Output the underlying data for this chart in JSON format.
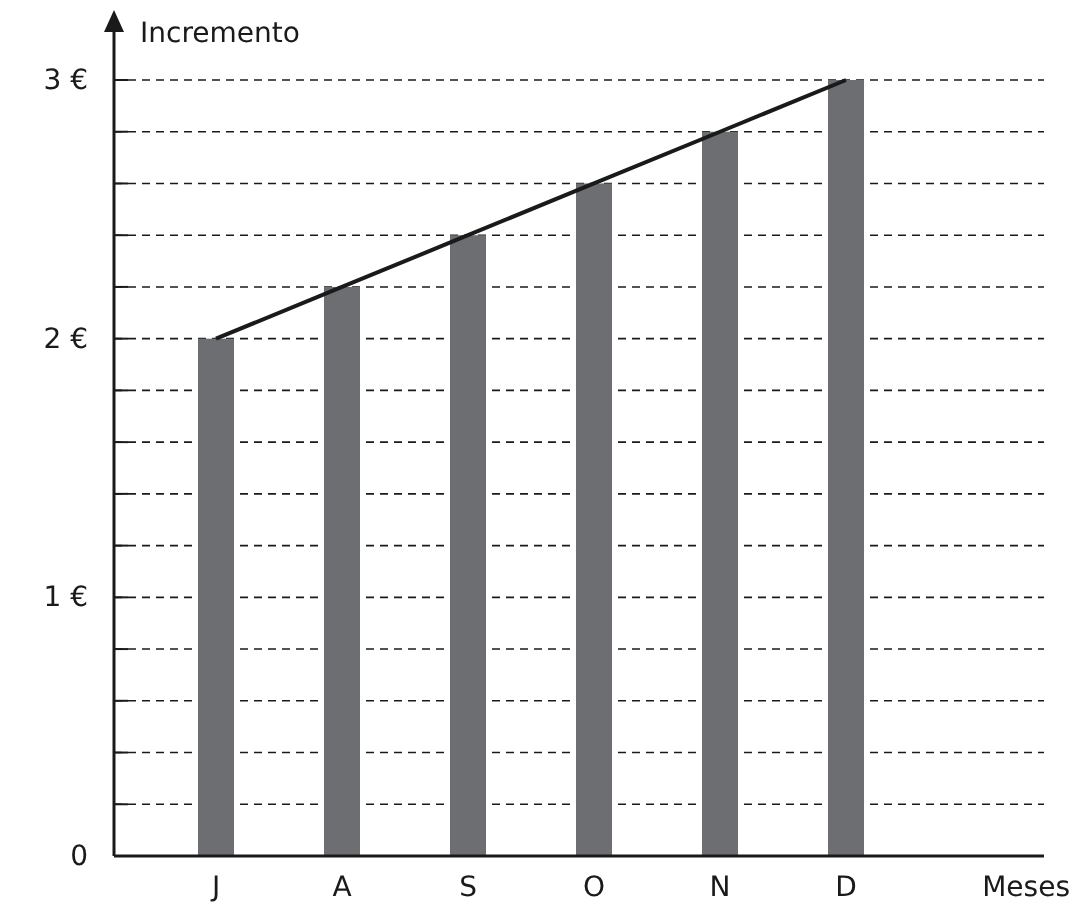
{
  "chart_data": {
    "type": "bar",
    "ylabel": "Incremento",
    "xlabel": "Meses",
    "categories": [
      "J",
      "A",
      "S",
      "O",
      "N",
      "D"
    ],
    "series": [
      {
        "color": "#6d6e71",
        "values": [
          2,
          2.2,
          2.4,
          2.6,
          2.8,
          3
        ]
      },
      {
        "type": "line",
        "color": "#1a1a1a",
        "values": [
          2,
          2.2,
          2.4,
          2.6,
          2.8,
          3
        ]
      }
    ],
    "ylim": [
      0,
      3
    ],
    "yticks": [
      {
        "value": 0,
        "label": "0"
      },
      {
        "value": 0.2,
        "label": null
      },
      {
        "value": 0.4,
        "label": null
      },
      {
        "value": 0.6,
        "label": null
      },
      {
        "value": 0.8,
        "label": null
      },
      {
        "value": 1,
        "label": "1 €"
      },
      {
        "value": 1.2,
        "label": null
      },
      {
        "value": 1.4,
        "label": null
      },
      {
        "value": 1.6,
        "label": null
      },
      {
        "value": 1.8,
        "label": null
      },
      {
        "value": 2,
        "label": "2 €"
      },
      {
        "value": 2.2,
        "label": null
      },
      {
        "value": 2.4,
        "label": null
      },
      {
        "value": 2.6,
        "label": null
      },
      {
        "value": 2.8,
        "label": null
      },
      {
        "value": 3,
        "label": "3 €"
      }
    ],
    "grid": "y",
    "marker": "none",
    "line_style": "solid"
  }
}
